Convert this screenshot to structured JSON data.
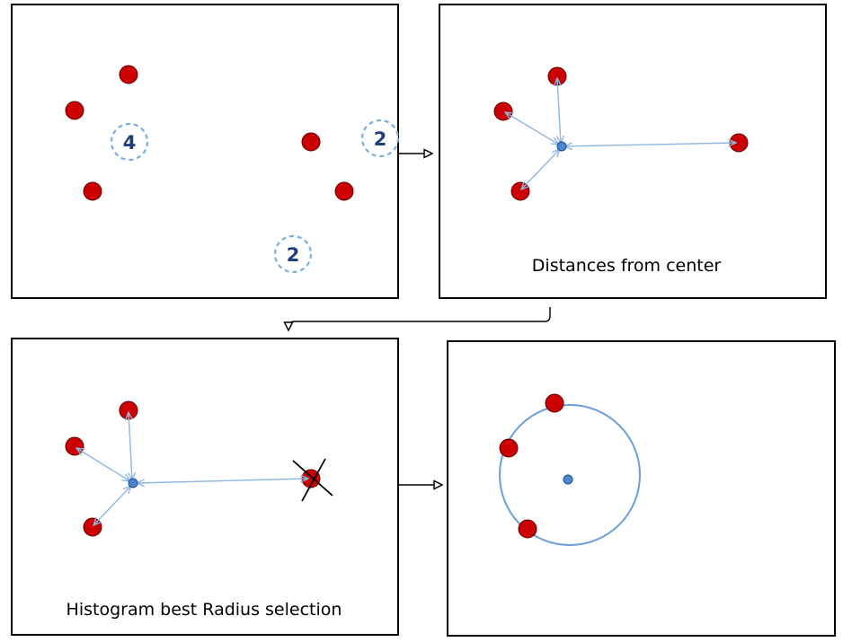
{
  "panels": [
    {
      "name": "clusters",
      "counts": [
        "4",
        "2",
        "2"
      ]
    },
    {
      "name": "distances",
      "caption": "Distances from center"
    },
    {
      "name": "histogram",
      "caption": "Histogram best Radius selection"
    },
    {
      "name": "final-circle"
    }
  ],
  "colors": {
    "point": "#cc0000",
    "center": "#4a86d0",
    "arrow": "#8fb6e0",
    "count_label": "#1f3f7a"
  }
}
